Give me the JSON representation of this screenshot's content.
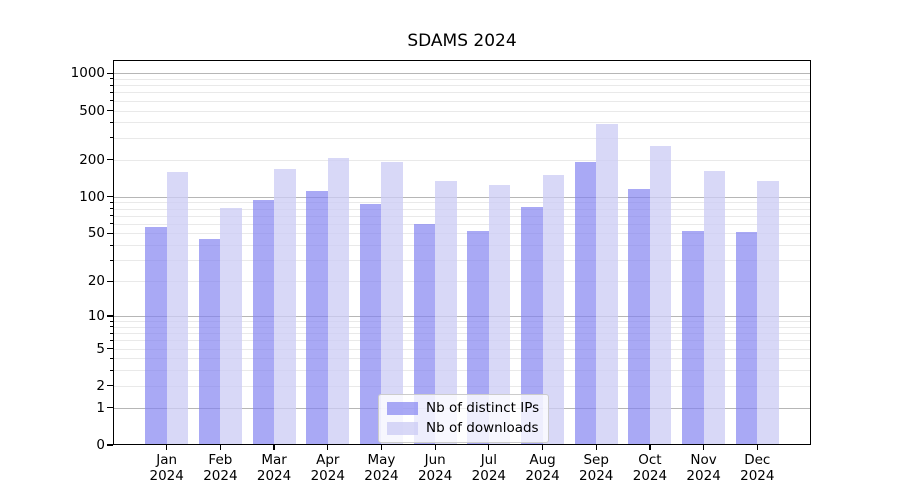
{
  "title": "SDAMS 2024",
  "chart_data": {
    "type": "bar",
    "title": "SDAMS 2024",
    "categories": [
      "Jan 2024",
      "Feb 2024",
      "Mar 2024",
      "Apr 2024",
      "May 2024",
      "Jun 2024",
      "Jul 2024",
      "Aug 2024",
      "Sep 2024",
      "Oct 2024",
      "Nov 2024",
      "Dec 2024"
    ],
    "series": [
      {
        "name": "Nb of distinct IPs",
        "fill": "rgba(128,128,240,0.68)",
        "values": [
          56,
          45,
          94,
          112,
          87,
          60,
          52,
          83,
          193,
          116,
          52,
          51
        ]
      },
      {
        "name": "Nb of downloads",
        "fill": "rgba(204,204,245,0.76)",
        "values": [
          158,
          81,
          167,
          208,
          190,
          133,
          125,
          150,
          390,
          257,
          162,
          134
        ]
      }
    ],
    "xlabel": "",
    "ylabel": "",
    "yscale": "log1p",
    "ylim": [
      0,
      1280
    ],
    "yticks": [
      0,
      1,
      2,
      5,
      10,
      20,
      50,
      100,
      200,
      500,
      1000
    ],
    "major_gridline_values": [
      1,
      10,
      100,
      1000
    ],
    "grid": true,
    "legend_position": "lower center"
  },
  "colors": {
    "bar_distinct_ips": "rgba(128,128,240,0.68)",
    "bar_downloads": "rgba(204,204,245,0.76)",
    "grid_major": "#b6b6b6",
    "grid_minor": "#e9e9e9",
    "axis": "#000000",
    "legend_border": "#cccccc",
    "legend_background": "rgba(255,255,255,0.8)"
  }
}
